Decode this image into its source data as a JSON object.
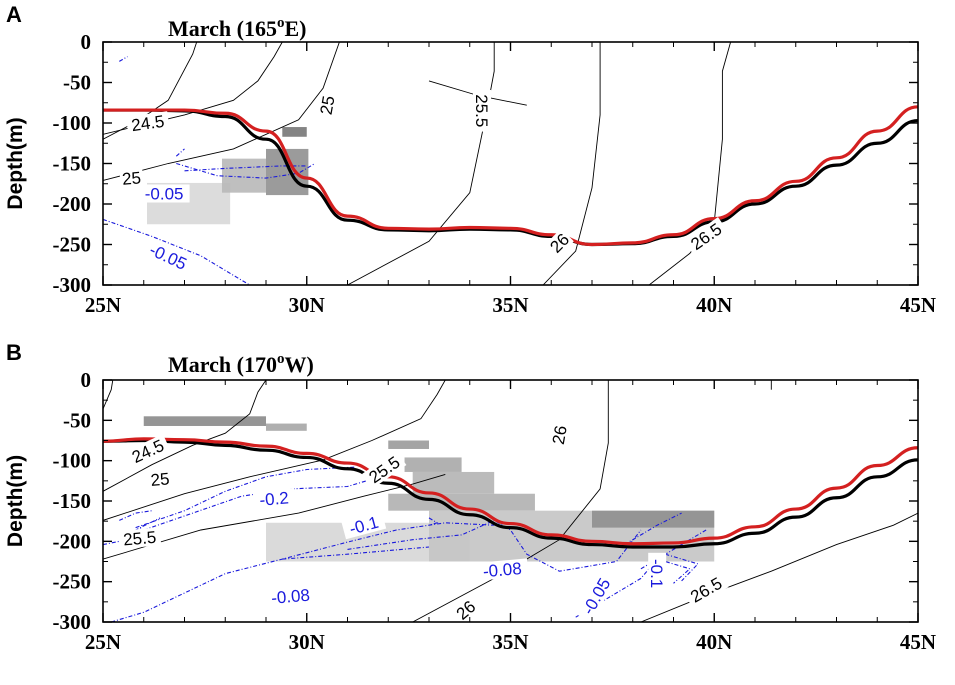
{
  "chart_data": [
    {
      "type": "line",
      "panel": "A",
      "title": "March (165",
      "title_sup": "o",
      "title_end": "E)",
      "ylabel": "Depth(m)",
      "xlim": [
        25,
        45
      ],
      "ylim": [
        -300,
        0
      ],
      "x_ticks": [
        25,
        30,
        35,
        40,
        45
      ],
      "x_tick_labels": [
        "25N",
        "30N",
        "35N",
        "40N",
        "45N"
      ],
      "y_ticks": [
        0,
        -50,
        -100,
        -150,
        -200,
        -250,
        -300
      ],
      "y_tick_labels": [
        "0",
        "-50",
        "-100",
        "-150",
        "-200",
        "-250",
        "-300"
      ],
      "colors": {
        "red_line": "#d42020",
        "black_line": "#000000",
        "contour": "#000000",
        "anomaly": "#1a1adc"
      },
      "series": [
        {
          "color": "red",
          "x": [
            25,
            26,
            27,
            28,
            29,
            30,
            31,
            32,
            33,
            34,
            35,
            36,
            37,
            38,
            39,
            40,
            41,
            42,
            43,
            44,
            45
          ],
          "y": [
            -84,
            -84,
            -84,
            -88,
            -110,
            -168,
            -215,
            -230,
            -231,
            -229,
            -230,
            -238,
            -250,
            -248,
            -238,
            -218,
            -196,
            -172,
            -143,
            -110,
            -80
          ]
        },
        {
          "color": "black",
          "x": [
            25,
            26,
            27,
            28,
            29,
            30,
            31,
            32,
            33,
            34,
            35,
            36,
            37,
            38,
            39,
            40,
            41,
            42,
            43,
            44,
            45
          ],
          "y": [
            -84,
            -84,
            -85,
            -92,
            -120,
            -178,
            -220,
            -232,
            -233,
            -231,
            -232,
            -240,
            -250,
            -249,
            -240,
            -222,
            -200,
            -178,
            -152,
            -125,
            -97
          ]
        }
      ],
      "contour_labels": [
        {
          "text": "24.5",
          "x": 26.1,
          "y": -100,
          "color": "black",
          "angle": -8
        },
        {
          "text": "25",
          "x": 30.5,
          "y": -78,
          "color": "black",
          "angle": -80
        },
        {
          "text": "25.5",
          "x": 34.3,
          "y": -85,
          "color": "black",
          "angle": 90
        },
        {
          "text": "25",
          "x": 25.7,
          "y": -168,
          "color": "black",
          "angle": -5
        },
        {
          "text": "-0.05",
          "x": 26.5,
          "y": -187,
          "color": "blue",
          "angle": 0
        },
        {
          "text": "-0.05",
          "x": 26.6,
          "y": -265,
          "color": "blue",
          "angle": 25
        },
        {
          "text": "26",
          "x": 36.2,
          "y": -248,
          "color": "black",
          "angle": -45
        },
        {
          "text": "26.5",
          "x": 39.8,
          "y": -240,
          "color": "black",
          "angle": -35
        }
      ]
    },
    {
      "type": "line",
      "panel": "B",
      "title": "March (170",
      "title_sup": "o",
      "title_end": "W)",
      "ylabel": "Depth(m)",
      "xlim": [
        25,
        45
      ],
      "ylim": [
        -300,
        0
      ],
      "x_ticks": [
        25,
        30,
        35,
        40,
        45
      ],
      "x_tick_labels": [
        "25N",
        "30N",
        "35N",
        "40N",
        "45N"
      ],
      "y_ticks": [
        0,
        -50,
        -100,
        -150,
        -200,
        -250,
        -300
      ],
      "y_tick_labels": [
        "0",
        "-50",
        "-100",
        "-150",
        "-200",
        "-250",
        "-300"
      ],
      "colors": {
        "red_line": "#d42020",
        "black_line": "#000000",
        "contour": "#000000",
        "anomaly": "#1a1adc"
      },
      "series": [
        {
          "color": "red",
          "x": [
            25,
            26,
            27,
            28,
            29,
            30,
            31,
            32,
            33,
            34,
            35,
            36,
            37,
            38,
            39,
            40,
            41,
            42,
            43,
            44,
            45
          ],
          "y": [
            -76,
            -73,
            -74,
            -77,
            -82,
            -91,
            -103,
            -120,
            -140,
            -160,
            -178,
            -192,
            -200,
            -203,
            -202,
            -196,
            -182,
            -160,
            -134,
            -106,
            -84
          ]
        },
        {
          "color": "black",
          "x": [
            25,
            26,
            27,
            28,
            29,
            30,
            31,
            32,
            33,
            34,
            35,
            36,
            37,
            38,
            39,
            40,
            41,
            42,
            43,
            44,
            45
          ],
          "y": [
            -76,
            -75,
            -77,
            -81,
            -87,
            -96,
            -110,
            -128,
            -148,
            -167,
            -183,
            -196,
            -204,
            -207,
            -207,
            -203,
            -190,
            -170,
            -146,
            -120,
            -99
          ]
        }
      ],
      "contour_labels": [
        {
          "text": "24.5",
          "x": 26.1,
          "y": -88,
          "color": "black",
          "angle": -25
        },
        {
          "text": "25",
          "x": 26.4,
          "y": -123,
          "color": "black",
          "angle": -5
        },
        {
          "text": "25.5",
          "x": 25.9,
          "y": -196,
          "color": "black",
          "angle": -5
        },
        {
          "text": "25.5",
          "x": 31.9,
          "y": -111,
          "color": "black",
          "angle": -35
        },
        {
          "text": "-0.2",
          "x": 29.2,
          "y": -147,
          "color": "blue",
          "angle": -5
        },
        {
          "text": "-0.1",
          "x": 31.4,
          "y": -180,
          "color": "blue",
          "angle": -15
        },
        {
          "text": "-0.08",
          "x": 29.6,
          "y": -268,
          "color": "blue",
          "angle": -5
        },
        {
          "text": "-0.08",
          "x": 34.8,
          "y": -235,
          "color": "blue",
          "angle": -5
        },
        {
          "text": "-0.05",
          "x": 37.1,
          "y": -268,
          "color": "blue",
          "angle": -60
        },
        {
          "text": "-0.1",
          "x": 38.6,
          "y": -240,
          "color": "blue",
          "angle": 90
        },
        {
          "text": "26",
          "x": 36.2,
          "y": -68,
          "color": "black",
          "angle": -80
        },
        {
          "text": "26",
          "x": 33.9,
          "y": -285,
          "color": "black",
          "angle": -40
        },
        {
          "text": "26.5",
          "x": 39.8,
          "y": -260,
          "color": "black",
          "angle": -30
        }
      ]
    }
  ]
}
